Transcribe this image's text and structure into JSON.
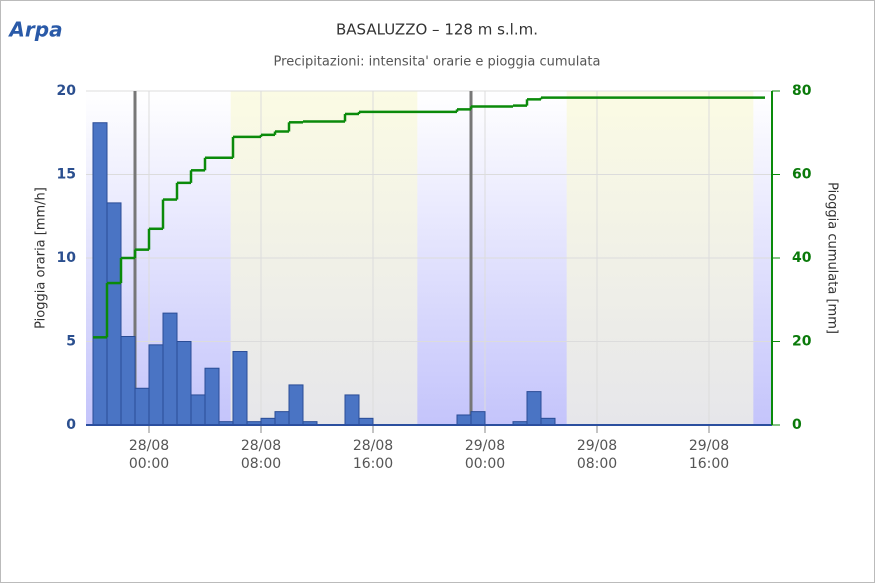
{
  "logo": "Arpa",
  "chart_data": {
    "type": "bar",
    "title": "BASALUZZO – 128 m s.l.m.",
    "subtitle": "Precipitazioni: intensita' orarie e pioggia cumulata",
    "y_label": "Pioggia oraria [mm/h]",
    "y2_label": "Pioggia cumulata [mm]",
    "xlim": [
      "27/08 19:30",
      "29/08 20:30"
    ],
    "xticks": [
      "28/08 00:00",
      "28/08 08:00",
      "28/08 16:00",
      "29/08 00:00",
      "29/08 08:00",
      "29/08 16:00"
    ],
    "ylim": [
      0,
      20
    ],
    "yticks": [
      0,
      5,
      10,
      15,
      20
    ],
    "y2lim": [
      0,
      80
    ],
    "y2ticks": [
      0,
      20,
      40,
      60,
      80
    ],
    "grid": true,
    "day_bands": [
      {
        "from": "28/08 05:50",
        "to": "28/08 19:10"
      },
      {
        "from": "29/08 05:50",
        "to": "29/08 19:10"
      }
    ],
    "plot_lines": [
      "27/08 23:00",
      "28/08 23:00"
    ],
    "series": [
      {
        "type": "bar",
        "color": "#4a74c4",
        "x": [
          "27/08 20:00",
          "27/08 21:00",
          "27/08 22:00",
          "27/08 23:00",
          "28/08 00:00",
          "28/08 01:00",
          "28/08 02:00",
          "28/08 03:00",
          "28/08 04:00",
          "28/08 05:00",
          "28/08 06:00",
          "28/08 07:00",
          "28/08 08:00",
          "28/08 09:00",
          "28/08 10:00",
          "28/08 11:00",
          "28/08 14:00",
          "28/08 15:00",
          "28/08 22:00",
          "28/08 23:00",
          "29/08 02:00",
          "29/08 03:00",
          "29/08 04:00"
        ],
        "values": [
          18.1,
          13.3,
          5.3,
          2.2,
          4.8,
          6.7,
          5.0,
          1.8,
          3.4,
          0.2,
          4.4,
          0.2,
          0.4,
          0.8,
          2.4,
          0.2,
          1.8,
          0.4,
          0.6,
          0.8,
          0.2,
          2.0,
          0.4
        ]
      },
      {
        "type": "step",
        "axis": "y2",
        "color": "#0a8a0a",
        "x": [
          "27/08 20:00",
          "27/08 21:00",
          "27/08 22:00",
          "27/08 23:00",
          "28/08 00:00",
          "28/08 01:00",
          "28/08 02:00",
          "28/08 03:00",
          "28/08 04:00",
          "28/08 06:00",
          "28/08 08:00",
          "28/08 09:00",
          "28/08 10:00",
          "28/08 11:00",
          "28/08 14:00",
          "28/08 15:00",
          "28/08 22:00",
          "28/08 23:00",
          "29/08 02:00",
          "29/08 03:00",
          "29/08 04:00",
          "29/08 20:00"
        ],
        "values": [
          21,
          34,
          40,
          42,
          47,
          54,
          58,
          61,
          64,
          69,
          69.5,
          70.3,
          72.5,
          72.7,
          74.5,
          75,
          75.6,
          76.3,
          76.5,
          78,
          78.4,
          78.4
        ]
      }
    ]
  }
}
